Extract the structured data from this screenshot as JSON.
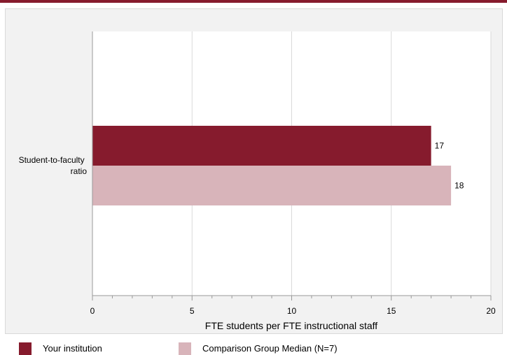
{
  "chart_data": {
    "type": "bar",
    "orientation": "horizontal",
    "categories": [
      "Student-to-faculty ratio"
    ],
    "series": [
      {
        "name": "Your institution",
        "values": [
          17
        ],
        "color": "#861b2d"
      },
      {
        "name": "Comparison Group Median (N=7)",
        "values": [
          18
        ],
        "color": "#d8b4ba"
      }
    ],
    "data_labels": [
      "17",
      "18"
    ],
    "xlabel": "FTE students per FTE instructional staff",
    "xlim": [
      0,
      20
    ],
    "xticks": [
      0,
      5,
      10,
      15,
      20
    ],
    "xtick_labels": [
      "0",
      "5",
      "10",
      "15",
      "20"
    ],
    "grid": true,
    "legend_position": "bottom-left"
  },
  "category_label_lines": [
    "Student-to-faculty",
    "ratio"
  ],
  "legend": {
    "items": [
      {
        "label": "Your institution",
        "color": "#861b2d"
      },
      {
        "label": "Comparison Group Median (N=7)",
        "color": "#d8b4ba"
      }
    ]
  }
}
